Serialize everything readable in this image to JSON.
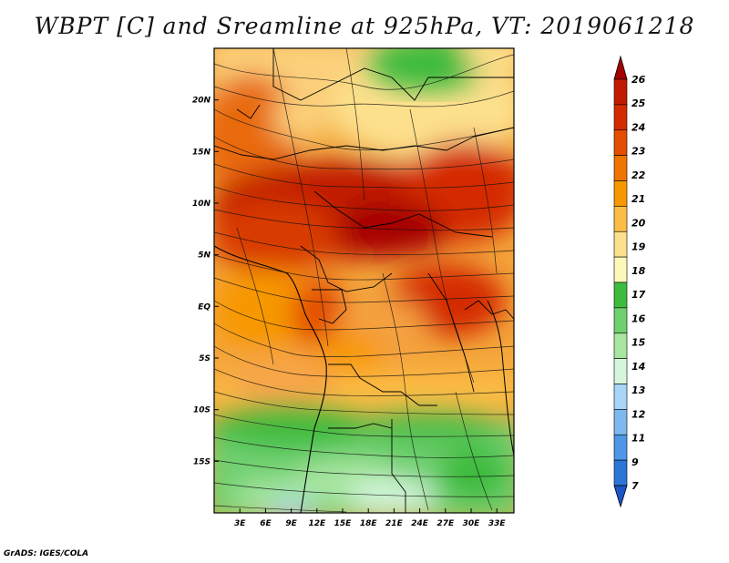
{
  "title": "WBPT [C] and Sreamline at 925hPa, VT: 2019061218",
  "footer": "GrADS: IGES/COLA",
  "map": {
    "lon_range": [
      0,
      35
    ],
    "lat_range": [
      -20,
      25
    ],
    "lon_ticks": [
      "3E",
      "6E",
      "9E",
      "12E",
      "15E",
      "18E",
      "21E",
      "24E",
      "27E",
      "30E",
      "33E"
    ],
    "lon_tick_values": [
      3,
      6,
      9,
      12,
      15,
      18,
      21,
      24,
      27,
      30,
      33
    ],
    "lat_ticks": [
      "20N",
      "15N",
      "10N",
      "5N",
      "EQ",
      "5S",
      "10S",
      "15S"
    ],
    "lat_tick_values": [
      20,
      15,
      10,
      5,
      0,
      -5,
      -10,
      -15
    ]
  },
  "colorbar": {
    "labels": [
      "26",
      "25",
      "24",
      "23",
      "22",
      "21",
      "20",
      "19",
      "18",
      "17",
      "16",
      "15",
      "14",
      "13",
      "12",
      "11",
      "9",
      "7"
    ],
    "colors": [
      "#a50000",
      "#c11a00",
      "#d42a00",
      "#e34e00",
      "#ef7400",
      "#f79800",
      "#fbbd45",
      "#fde08c",
      "#fdf7b8",
      "#3dbb3d",
      "#6fd06f",
      "#a7e5a0",
      "#d6f5dd",
      "#a8d4f5",
      "#7db8ee",
      "#4d97e6",
      "#2c76d8",
      "#1b55c7"
    ]
  }
}
